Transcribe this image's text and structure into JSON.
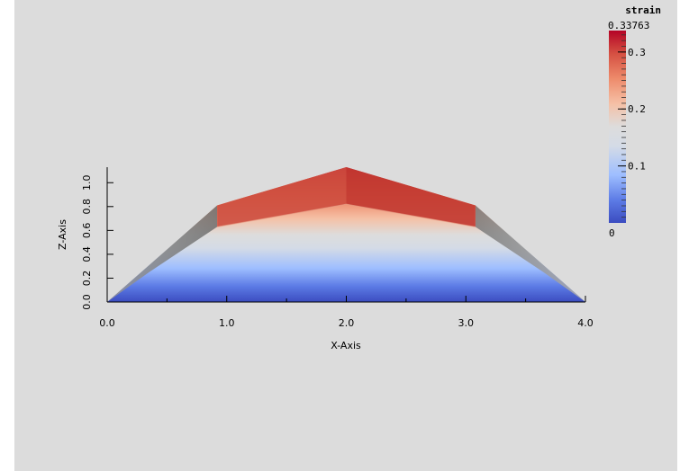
{
  "chart_data": {
    "type": "heatmap",
    "xlabel": "X-Axis",
    "ylabel": "Z-Axis",
    "xlim": [
      0.0,
      4.0
    ],
    "ylim": [
      0.0,
      1.13
    ],
    "x_ticks": [
      0.0,
      1.0,
      2.0,
      3.0,
      4.0
    ],
    "x_tick_labels": [
      "0.0",
      "1.0",
      "2.0",
      "3.0",
      "4.0"
    ],
    "y_ticks": [
      0.0,
      0.2,
      0.4,
      0.6,
      0.8,
      1.0
    ],
    "y_tick_labels": [
      "0.0",
      "0.2",
      "0.4",
      "0.6",
      "0.8",
      "1.0"
    ],
    "outline_top_front": [
      [
        0.0,
        0.0
      ],
      [
        0.92,
        0.81
      ],
      [
        2.0,
        1.13
      ],
      [
        3.08,
        0.81
      ],
      [
        4.0,
        0.0
      ]
    ],
    "outline_top_back": [
      [
        0.92,
        0.63
      ],
      [
        2.0,
        0.82
      ],
      [
        3.08,
        0.63
      ]
    ],
    "colormap": "Cool to Warm",
    "colorbar": {
      "title": "strain",
      "max_label": "0.33763",
      "min_label": "0",
      "tick_labels": [
        "0.3",
        "0.2",
        "0.1"
      ],
      "min": 0.0,
      "max": 0.33763,
      "ticks": [
        0.3,
        0.2,
        0.1
      ]
    }
  }
}
